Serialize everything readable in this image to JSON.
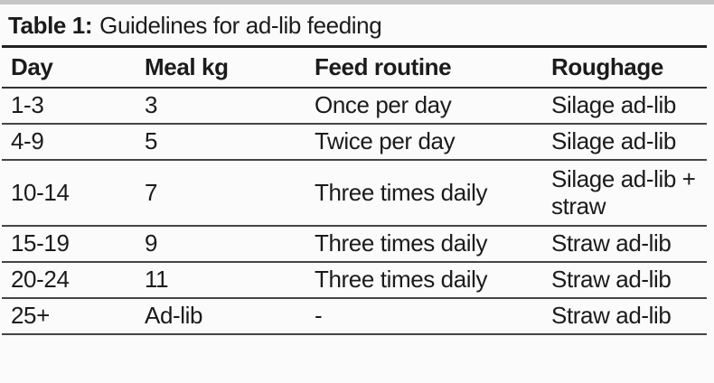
{
  "document": {
    "title_prefix": "Table 1:",
    "title_text": "Guidelines for ad-lib feeding"
  },
  "table": {
    "columns": [
      "Day",
      "Meal kg",
      "Feed routine",
      "Roughage"
    ],
    "rows": [
      [
        "1-3",
        "3",
        "Once per day",
        "Silage ad-lib"
      ],
      [
        "4-9",
        "5",
        "Twice per day",
        "Silage ad-lib"
      ],
      [
        "10-14",
        "7",
        "Three times daily",
        "Silage ad-lib + straw"
      ],
      [
        "15-19",
        "9",
        "Three times daily",
        "Straw ad-lib"
      ],
      [
        "20-24",
        "11",
        "Three times daily",
        "Straw ad-lib"
      ],
      [
        "25+",
        "Ad-lib",
        "-",
        "Straw ad-lib"
      ]
    ]
  },
  "colors": {
    "text": "#1b1b1b",
    "rule_heavy": "#222222",
    "rule_row": "#454545",
    "top_strip": "#c5c5c5",
    "background": "#fbfbfb"
  }
}
